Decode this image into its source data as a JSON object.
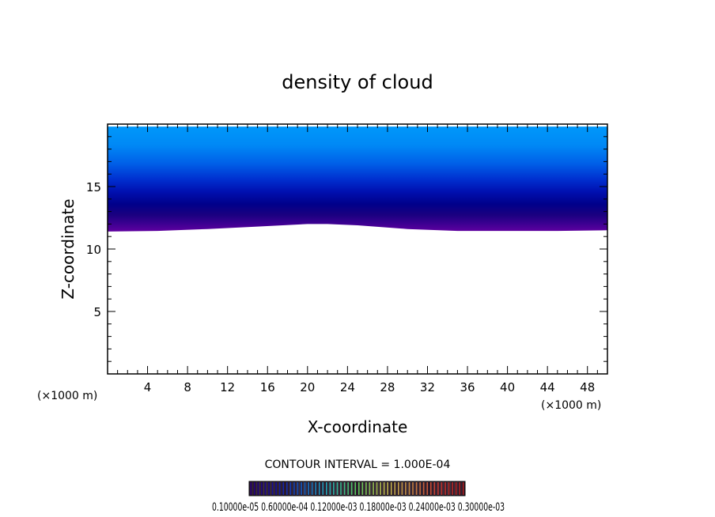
{
  "chart_data": {
    "type": "heatmap",
    "title": "density of cloud",
    "xlabel": "X-coordinate",
    "ylabel": "Z-coordinate",
    "x_unit": "(×1000 m)",
    "y_unit": "(×1000 m)",
    "xlim": [
      0,
      50
    ],
    "ylim": [
      0,
      20
    ],
    "x_ticks": [
      4,
      8,
      12,
      16,
      20,
      24,
      28,
      32,
      36,
      40,
      44,
      48
    ],
    "y_ticks": [
      5,
      10,
      15
    ],
    "contour_interval_text": "CONTOUR INTERVAL = 1.000E-04",
    "colorbar_labels_text": "0.10000e-05 0.60000e-04 0.12000e-03 0.18000e-03 0.24000e-03 0.30000e-03",
    "cloud_base_km": {
      "x": [
        0,
        5,
        10,
        15,
        20,
        22,
        25,
        30,
        35,
        40,
        45,
        50
      ],
      "z": [
        11.4,
        11.45,
        11.6,
        11.8,
        12.0,
        12.0,
        11.9,
        11.6,
        11.45,
        11.45,
        11.45,
        11.5
      ]
    },
    "cloud_top_km": 19.8,
    "colormap_values": [
      "#5b00a0",
      "#2a0090",
      "#000070",
      "#0008a8",
      "#0028d0",
      "#0050e8",
      "#0070f0",
      "#0090f8",
      "#0098fa"
    ],
    "colors": {
      "background": "#ffffff",
      "axes": "#000000"
    }
  }
}
